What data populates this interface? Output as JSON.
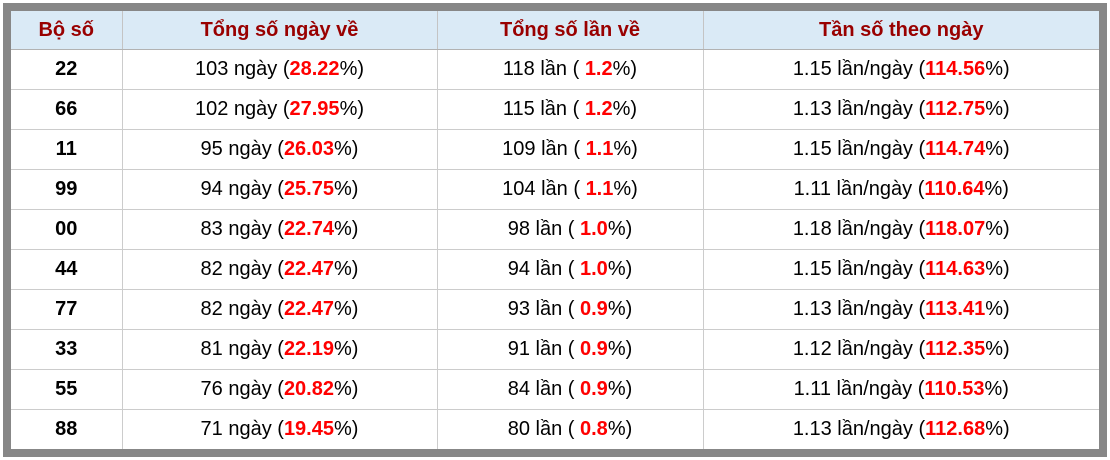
{
  "table": {
    "headers": [
      "Bộ số",
      "Tổng số ngày về",
      "Tổng số lần về",
      "Tần số theo ngày"
    ],
    "suffix": "%)",
    "rows": [
      {
        "num": "22",
        "days_prefix": "103 ngày (",
        "days_pct": "28.22",
        "times_prefix": "118 lần ( ",
        "times_pct": "1.2",
        "freq_prefix": "1.15 lần/ngày (",
        "freq_pct": "114.56"
      },
      {
        "num": "66",
        "days_prefix": "102 ngày (",
        "days_pct": "27.95",
        "times_prefix": "115 lần ( ",
        "times_pct": "1.2",
        "freq_prefix": "1.13 lần/ngày (",
        "freq_pct": "112.75"
      },
      {
        "num": "11",
        "days_prefix": "95 ngày (",
        "days_pct": "26.03",
        "times_prefix": "109 lần ( ",
        "times_pct": "1.1",
        "freq_prefix": "1.15 lần/ngày (",
        "freq_pct": "114.74"
      },
      {
        "num": "99",
        "days_prefix": "94 ngày (",
        "days_pct": "25.75",
        "times_prefix": "104 lần ( ",
        "times_pct": "1.1",
        "freq_prefix": "1.11 lần/ngày (",
        "freq_pct": "110.64"
      },
      {
        "num": "00",
        "days_prefix": "83 ngày (",
        "days_pct": "22.74",
        "times_prefix": "98 lần ( ",
        "times_pct": "1.0",
        "freq_prefix": "1.18 lần/ngày (",
        "freq_pct": "118.07"
      },
      {
        "num": "44",
        "days_prefix": "82 ngày (",
        "days_pct": "22.47",
        "times_prefix": "94 lần ( ",
        "times_pct": "1.0",
        "freq_prefix": "1.15 lần/ngày (",
        "freq_pct": "114.63"
      },
      {
        "num": "77",
        "days_prefix": "82 ngày (",
        "days_pct": "22.47",
        "times_prefix": "93 lần ( ",
        "times_pct": "0.9",
        "freq_prefix": "1.13 lần/ngày (",
        "freq_pct": "113.41"
      },
      {
        "num": "33",
        "days_prefix": "81 ngày (",
        "days_pct": "22.19",
        "times_prefix": "91 lần ( ",
        "times_pct": "0.9",
        "freq_prefix": "1.12 lần/ngày (",
        "freq_pct": "112.35"
      },
      {
        "num": "55",
        "days_prefix": "76 ngày (",
        "days_pct": "20.82",
        "times_prefix": "84 lần ( ",
        "times_pct": "0.9",
        "freq_prefix": "1.11 lần/ngày (",
        "freq_pct": "110.53"
      },
      {
        "num": "88",
        "days_prefix": "71 ngày (",
        "days_pct": "19.45",
        "times_prefix": "80 lần ( ",
        "times_pct": "0.8",
        "freq_prefix": "1.13 lần/ngày (",
        "freq_pct": "112.68"
      }
    ]
  },
  "colors": {
    "header_bg": "#daeaf6",
    "header_text": "#990000",
    "highlight_red": "#ff0000",
    "frame_gray": "#878787",
    "grid_line": "#cccccc"
  }
}
